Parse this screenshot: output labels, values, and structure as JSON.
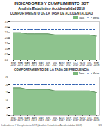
{
  "title": "INDICADORES Y CUMPLIMIENTO SST",
  "subtitle": "Analisis Estadistico Accidentalidad 2018",
  "annotations": [
    "Indicadores Y Cumplimiento SST (Analisis Estadistico Accidentalidad 2018)",
    "1/3"
  ],
  "chart_data": [
    {
      "type": "area",
      "title": "COMPORTAMIENTO DE LA TASA DE ACCIDENTALIDAD",
      "categories": [
        "ENE\n2017",
        "FEB\n2017",
        "MAR\n2017",
        "ABR\n2017",
        "MAY\n2017",
        "JUN\n2017",
        "JUL\n2017",
        "AGO\n2017",
        "SEP\n2017",
        "OCT\n2017",
        "NOV\n2017",
        "DIC\n2017",
        "ENE\n2018"
      ],
      "series": [
        {
          "name": "Tasa",
          "type": "area",
          "color": "#7ab87a",
          "values": [
            2.5,
            2.5,
            2.4,
            2.4,
            2.4,
            2.4,
            2.3,
            2.3,
            2.3,
            2.3,
            2.3,
            2.3,
            2.2
          ]
        },
        {
          "name": "Meta",
          "type": "line",
          "color": "#3060b0",
          "line_style": "dashed",
          "values": [
            2.8,
            2.8,
            2.8,
            2.8,
            2.8,
            2.8,
            2.8,
            2.8,
            2.8,
            2.8,
            2.8,
            2.8,
            2.8
          ]
        }
      ],
      "ylim": [
        0,
        3.5
      ],
      "yticks": [
        {
          "value": 0,
          "label": "0.0"
        },
        0.5,
        {
          "value": 1,
          "label": "1.0"
        },
        1.5,
        {
          "value": 2,
          "label": "2.0"
        },
        2.5,
        {
          "value": 3,
          "label": "3.0"
        },
        3.5
      ],
      "legend": "upper right",
      "grid": false
    },
    {
      "type": "area",
      "title": "COMPORTAMIENTO DE LA TASA DE FRECUENCIA",
      "categories": [
        "ENE\n2017",
        "FEB\n2017",
        "MAR\n2017",
        "ABR\n2017",
        "MAY\n2017",
        "JUN\n2017",
        "JUL\n2017",
        "AGO\n2017",
        "SEP\n2017",
        "OCT\n2017",
        "NOV\n2017",
        "DIC\n2017",
        "ENE\n2018"
      ],
      "series": [
        {
          "name": "Tasa",
          "type": "area",
          "color": "#7ab87a",
          "values": [
            18,
            18,
            17,
            17,
            17,
            17,
            16,
            16,
            16,
            16,
            16,
            16,
            15
          ]
        },
        {
          "name": "Meta",
          "type": "line",
          "color": "#3060b0",
          "line_style": "dashed",
          "values": [
            20,
            20,
            20,
            20,
            20,
            20,
            20,
            20,
            20,
            20,
            20,
            20,
            20
          ]
        }
      ],
      "ylim": [
        0,
        25
      ],
      "yticks": [
        0,
        5,
        10,
        15,
        20,
        25
      ],
      "legend": "upper right",
      "grid": false
    }
  ]
}
